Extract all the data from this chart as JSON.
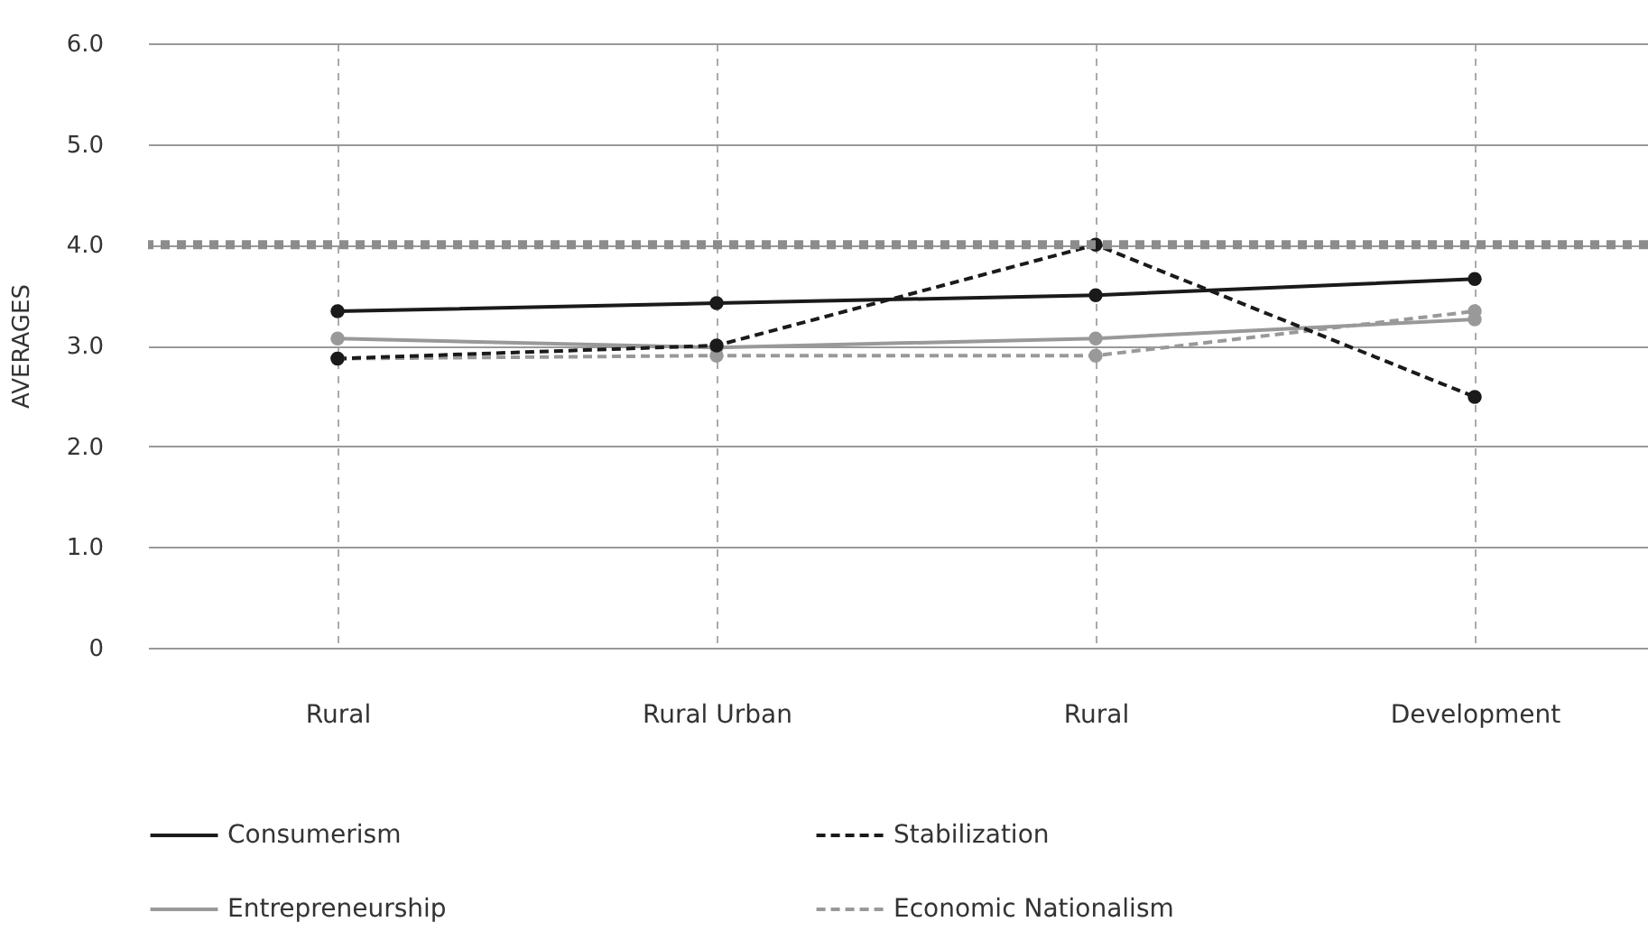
{
  "chart_data": {
    "type": "line",
    "ylabel": "AVERAGES",
    "categories": [
      "Rural",
      "Rural Urban",
      "Rural",
      "Development"
    ],
    "series": [
      {
        "name": "Consumerism",
        "color": "#1a1a1a",
        "line_style": "solid",
        "values": [
          3.34,
          3.42,
          3.5,
          3.66
        ]
      },
      {
        "name": "Stabilization",
        "color": "#1a1a1a",
        "line_style": "dashed",
        "values": [
          2.87,
          3.0,
          4.0,
          2.49
        ]
      },
      {
        "name": "Entrepreneurship",
        "color": "#999999",
        "line_style": "solid",
        "values": [
          3.07,
          2.98,
          3.07,
          3.26
        ]
      },
      {
        "name": "Economic Nationalism",
        "color": "#999999",
        "line_style": "dashed",
        "values": [
          2.87,
          2.9,
          2.9,
          3.34
        ]
      }
    ],
    "ylim": [
      0,
      6
    ],
    "yticks": [
      {
        "value": 0,
        "label": "0"
      },
      {
        "value": 1,
        "label": "1.0"
      },
      {
        "value": 2,
        "label": "2.0"
      },
      {
        "value": 3,
        "label": "3.0"
      },
      {
        "value": 4,
        "label": "4.0"
      },
      {
        "value": 5,
        "label": "5.0"
      },
      {
        "value": 6,
        "label": "6.0"
      }
    ],
    "ref_lines": [
      {
        "axis": "y",
        "value": 4,
        "color": "#8c8c8c",
        "line_style": "dotted"
      }
    ],
    "grid": true,
    "legend": "bottom",
    "marker": "circle"
  }
}
